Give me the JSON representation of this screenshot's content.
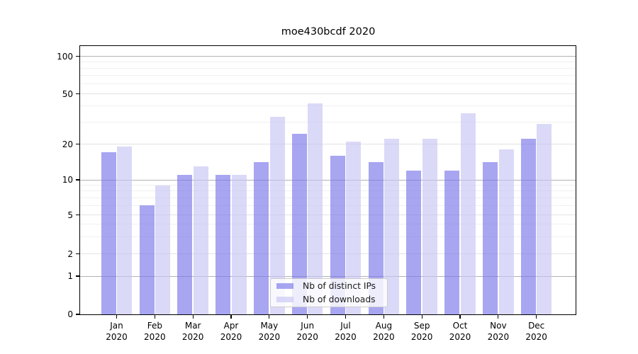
{
  "title": "moe430bcdf 2020",
  "legend": {
    "items": [
      {
        "label": "Nb of distinct IPs",
        "color": "rgba(122,119,234,0.65)"
      },
      {
        "label": "Nb of downloads",
        "color": "rgba(199,197,245,0.65)"
      }
    ]
  },
  "axis": {
    "y_tick_labels": [
      "0",
      "1",
      "2",
      "5",
      "10",
      "20",
      "50",
      "100"
    ],
    "y_tick_values": [
      0,
      1,
      2,
      5,
      10,
      20,
      50,
      100
    ]
  },
  "chart_data": {
    "type": "bar",
    "title": "moe430bcdf 2020",
    "categories": [
      "Jan 2020",
      "Feb 2020",
      "Mar 2020",
      "Apr 2020",
      "May 2020",
      "Jun 2020",
      "Jul 2020",
      "Aug 2020",
      "Sep 2020",
      "Oct 2020",
      "Nov 2020",
      "Dec 2020"
    ],
    "series": [
      {
        "name": "Nb of distinct IPs",
        "color": "rgba(122,119,234,0.65)",
        "values": [
          17,
          6,
          11,
          11,
          14,
          24,
          16,
          14,
          12,
          12,
          14,
          22
        ]
      },
      {
        "name": "Nb of downloads",
        "color": "rgba(199,197,245,0.65)",
        "values": [
          19,
          9,
          13,
          11,
          33,
          42,
          21,
          22,
          22,
          35,
          18,
          29
        ]
      }
    ],
    "xlabel": "",
    "ylabel": "",
    "yscale": "symlog",
    "y_ticks": [
      0,
      1,
      2,
      5,
      10,
      20,
      50,
      100
    ],
    "ylim": [
      0,
      120
    ],
    "grid": true,
    "legend_position": "lower center"
  }
}
